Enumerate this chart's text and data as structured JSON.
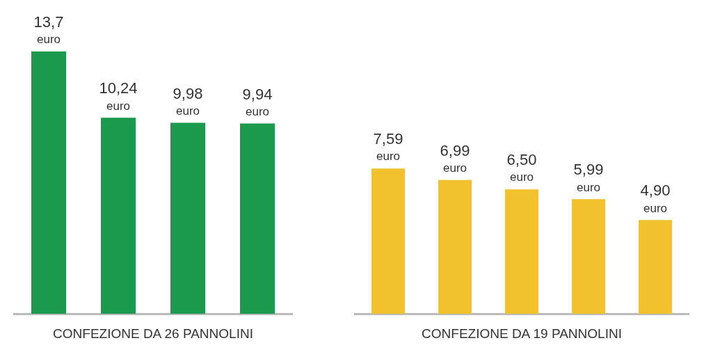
{
  "chart_data": [
    {
      "type": "bar",
      "categories": [
        null,
        null,
        null,
        null
      ],
      "values": [
        13.7,
        10.24,
        9.98,
        9.94
      ],
      "color": "#1b9a4e",
      "value_labels": [
        "13,7 euro",
        "10,24 euro",
        "9,98 euro",
        "9,94 euro"
      ],
      "xlabel": "CONFEZIONE DA 26 PANNOLINI",
      "grid": false,
      "legend": false
    },
    {
      "type": "bar",
      "categories": [
        null,
        null,
        null,
        null,
        null
      ],
      "values": [
        7.59,
        6.99,
        6.5,
        5.99,
        4.9
      ],
      "color": "#f2c12e",
      "value_labels": [
        "7,59 euro",
        "6,99 euro",
        "6,50 euro",
        "5,99 euro",
        "4,90 euro"
      ],
      "xlabel": "CONFEZIONE DA 19 PANNOLINI",
      "grid": false,
      "legend": false
    }
  ]
}
